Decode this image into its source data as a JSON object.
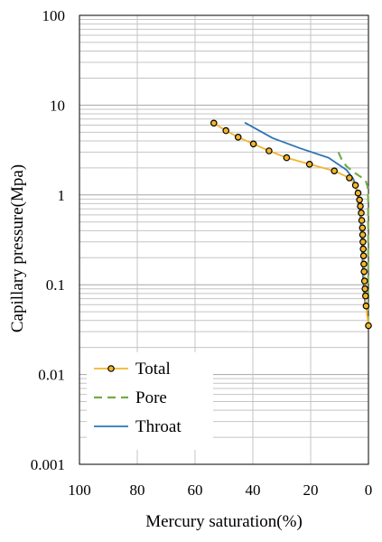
{
  "chart_data": {
    "type": "line",
    "xlabel": "Mercury saturation(%)",
    "ylabel": "Capillary pressure(Mpa)",
    "x_range": [
      100,
      0
    ],
    "x_reversed": true,
    "y_range": [
      0.001,
      100
    ],
    "y_scale": "log",
    "x_ticks": [
      "100",
      "80",
      "60",
      "40",
      "20",
      "0"
    ],
    "x_tick_values": [
      100,
      80,
      60,
      40,
      20,
      0
    ],
    "y_ticks": [
      "0.001",
      "0.01",
      "0.1",
      "1",
      "10",
      "100"
    ],
    "y_tick_values": [
      0.001,
      0.01,
      0.1,
      1,
      10,
      100
    ],
    "grid": {
      "horizontal_minor": true,
      "vertical": true
    },
    "legend_position": "bottom-left",
    "colors": {
      "Total": "#f2b62c",
      "Pore": "#71ad47",
      "Throat": "#2f74b5"
    },
    "series": [
      {
        "name": "Total",
        "style": "solid-line-circle-markers",
        "points": [
          [
            53.5,
            6.3
          ],
          [
            49.3,
            5.2
          ],
          [
            45.1,
            4.4
          ],
          [
            39.8,
            3.7
          ],
          [
            34.4,
            3.1
          ],
          [
            28.3,
            2.6
          ],
          [
            20.4,
            2.2
          ],
          [
            11.8,
            1.85
          ],
          [
            6.6,
            1.55
          ],
          [
            4.5,
            1.28
          ],
          [
            3.6,
            1.05
          ],
          [
            3.1,
            0.88
          ],
          [
            2.8,
            0.75
          ],
          [
            2.5,
            0.63
          ],
          [
            2.3,
            0.52
          ],
          [
            2.1,
            0.43
          ],
          [
            2.0,
            0.36
          ],
          [
            1.9,
            0.3
          ],
          [
            1.8,
            0.25
          ],
          [
            1.7,
            0.21
          ],
          [
            1.6,
            0.17
          ],
          [
            1.5,
            0.14
          ],
          [
            1.35,
            0.11
          ],
          [
            1.2,
            0.09
          ],
          [
            1.0,
            0.075
          ],
          [
            0.8,
            0.058
          ],
          [
            0.0,
            0.035
          ]
        ]
      },
      {
        "name": "Pore",
        "style": "dashed-line",
        "points": [
          [
            10.4,
            3.0
          ],
          [
            9.3,
            2.5
          ],
          [
            7.7,
            2.1
          ],
          [
            5.2,
            1.8
          ],
          [
            2.8,
            1.6
          ],
          [
            1.0,
            1.45
          ],
          [
            0.3,
            1.25
          ],
          [
            0.1,
            0.9
          ],
          [
            0.1,
            0.4
          ],
          [
            0.1,
            0.1
          ],
          [
            0.1,
            0.035
          ]
        ]
      },
      {
        "name": "Throat",
        "style": "solid-line",
        "points": [
          [
            42.8,
            6.4
          ],
          [
            33.2,
            4.3
          ],
          [
            23.5,
            3.3
          ],
          [
            13.8,
            2.6
          ],
          [
            7.6,
            1.9
          ],
          [
            5.2,
            1.5
          ],
          [
            4.3,
            1.2
          ],
          [
            3.4,
            0.9
          ],
          [
            2.8,
            0.6
          ],
          [
            2.4,
            0.35
          ],
          [
            2.1,
            0.2
          ],
          [
            1.8,
            0.11
          ],
          [
            1.3,
            0.07
          ],
          [
            0.9,
            0.055
          ]
        ]
      }
    ]
  }
}
